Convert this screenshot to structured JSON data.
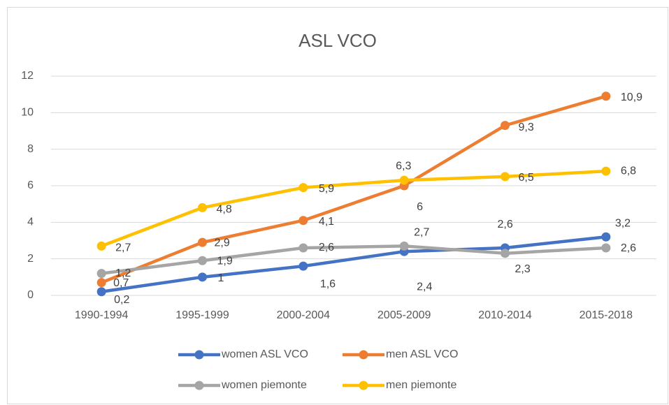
{
  "chart_data": {
    "type": "line",
    "title": "ASL  VCO",
    "categories": [
      "1990-1994",
      "1995-1999",
      "2000-2004",
      "2005-2009",
      "2010-2014",
      "2015-2018"
    ],
    "series": [
      {
        "name": "women ASL VCO",
        "color": "#4472c4",
        "values": [
          0.2,
          1,
          1.6,
          2.4,
          2.6,
          3.2
        ],
        "value_labels": [
          "0,2",
          "1",
          "1,6",
          "2,4",
          "2,6",
          "3,2"
        ]
      },
      {
        "name": "men ASL VCO",
        "color": "#ed7d31",
        "values": [
          0.7,
          2.9,
          4.1,
          6,
          9.3,
          10.9
        ],
        "value_labels": [
          "0,7",
          "2,9",
          "4,1",
          "6",
          "9,3",
          "10,9"
        ]
      },
      {
        "name": "women piemonte",
        "color": "#a5a5a5",
        "values": [
          1.2,
          1.9,
          2.6,
          2.7,
          2.3,
          2.6
        ],
        "value_labels": [
          "1,2",
          "1,9",
          "2,6",
          "2,7",
          "2,3",
          "2,6"
        ]
      },
      {
        "name": "men piemonte",
        "color": "#ffc000",
        "values": [
          2.7,
          4.8,
          5.9,
          6.3,
          6.5,
          6.8
        ],
        "value_labels": [
          "2,7",
          "4,8",
          "5,9",
          "6,3",
          "6,5",
          "6,8"
        ]
      }
    ],
    "ylim": [
      0,
      12
    ],
    "yticks": [
      0,
      2,
      4,
      6,
      8,
      10,
      12
    ],
    "grid": true
  }
}
